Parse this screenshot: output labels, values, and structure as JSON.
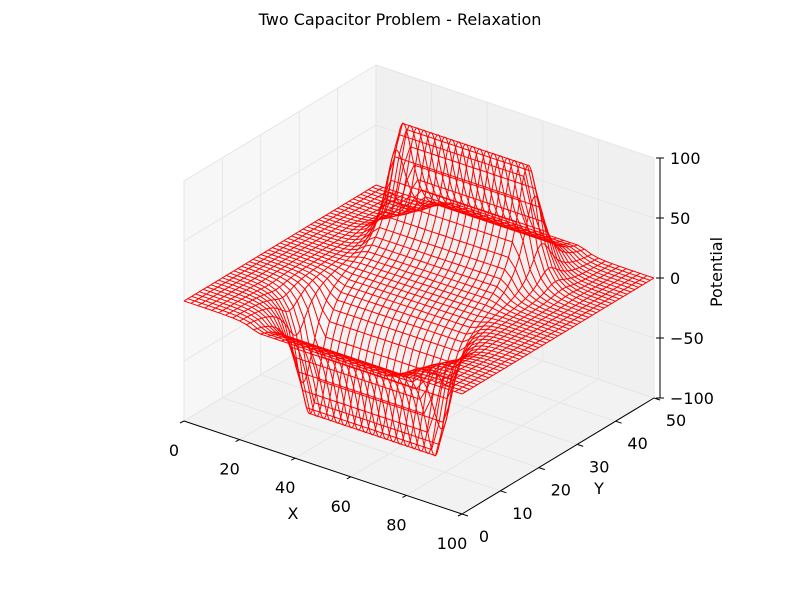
{
  "chart_data": {
    "type": "wireframe-3d",
    "title": "Two Capacitor Problem - Relaxation",
    "xlabel": "X",
    "ylabel": "Y",
    "zlabel": "Potential",
    "xlim": [
      0,
      100
    ],
    "ylim": [
      0,
      50
    ],
    "zlim": [
      -100,
      100
    ],
    "x_ticks": [
      0,
      20,
      40,
      60,
      80,
      100
    ],
    "y_ticks": [
      0,
      10,
      20,
      30,
      40,
      50
    ],
    "z_ticks": [
      -100,
      -50,
      0,
      50,
      100
    ],
    "z_tick_labels": [
      "−100",
      "−50",
      "0",
      "50",
      "100"
    ],
    "grid": true,
    "wire_color": "#ff0000",
    "surface": {
      "description_source": "relaxation solution of two parallel capacitor plates",
      "positive_plate": {
        "x_range": [
          26,
          74
        ],
        "y": 37,
        "potential": 100
      },
      "negative_plate": {
        "x_range": [
          26,
          74
        ],
        "y": 13,
        "potential": -100
      },
      "boundary_potential": 0
    }
  }
}
